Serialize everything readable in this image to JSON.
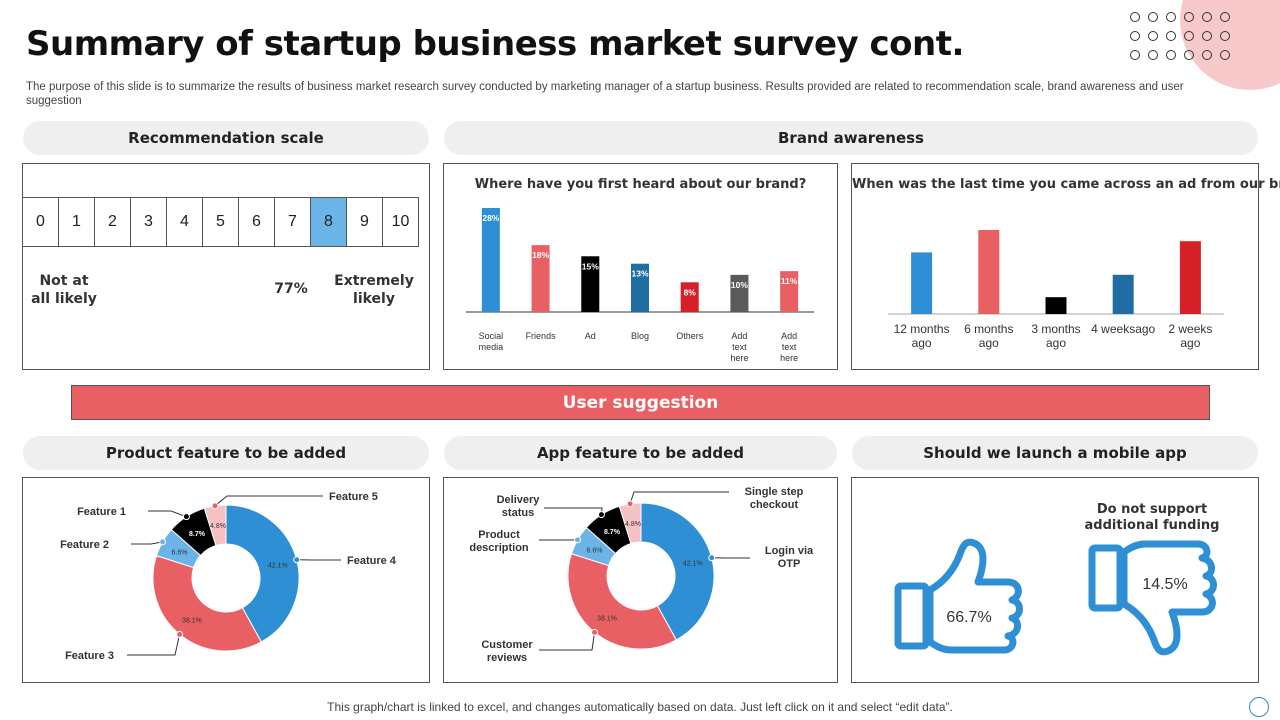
{
  "page": {
    "title": "Summary of startup business market survey cont.",
    "subtitle": "The purpose of this slide is to summarize the results of business market research survey conducted by marketing manager of a startup business. Results provided are related to recommendation scale, brand awareness and user suggestion",
    "footer": "This graph/chart is linked to excel,  and changes automatically based on data. Just left click on it and select “edit data”."
  },
  "sections": {
    "recommendation": "Recommendation scale",
    "brand": "Brand awareness",
    "user": "User suggestion",
    "product": "Product feature to be added",
    "app": "App feature to be added",
    "mobile": "Should we launch a mobile app"
  },
  "scale": {
    "numbers": [
      "0",
      "1",
      "2",
      "3",
      "4",
      "5",
      "6",
      "7",
      "8",
      "9",
      "10"
    ],
    "selected_index": 8,
    "low_label": "Not at all likely",
    "score": "77%",
    "high_label": "Extremely likely"
  },
  "mobile": {
    "support_pct": "66.7%",
    "oppose_pct": "14.5%",
    "oppose_label": "Do not support additional funding"
  },
  "colors": {
    "blue": "#2e8fd4",
    "red": "#e96064",
    "black": "#000000",
    "navy": "#1f6da3",
    "crimson": "#d42026",
    "gray": "#5a5a5a",
    "lightblue": "#6ab4e8",
    "pink": "#f6c1c3"
  },
  "chart_data": [
    {
      "type": "bar",
      "title": "Where have you first  heard about our brand?",
      "categories": [
        "Social media",
        "Friends",
        "Ad",
        "Blog",
        "Others",
        "Add text here",
        "Add text here"
      ],
      "values": [
        28,
        18,
        15,
        13,
        8,
        10,
        11
      ],
      "value_labels": [
        "28%",
        "18%",
        "15%",
        "13%",
        "8%",
        "10%",
        "11%"
      ],
      "bar_colors": [
        "#2e8fd4",
        "#e96064",
        "#000000",
        "#1f6da3",
        "#d42026",
        "#5a5a5a",
        "#e96064"
      ],
      "ylim": [
        0,
        28
      ]
    },
    {
      "type": "bar",
      "title": "When was the last time you came across  an ad from our brand",
      "categories": [
        "12 months ago",
        "6 months ago",
        "3 months ago",
        "4 weeksago",
        "2 weeks ago"
      ],
      "values": [
        22,
        30,
        6,
        14,
        26
      ],
      "bar_colors": [
        "#2e8fd4",
        "#e96064",
        "#000000",
        "#1f6da3",
        "#d42026"
      ],
      "ylim": [
        0,
        30
      ]
    },
    {
      "type": "pie",
      "title": "Product feature to be added",
      "labels": [
        "Feature 4",
        "Feature 3",
        "Feature 2",
        "Feature 1",
        "Feature 5"
      ],
      "values": [
        42.1,
        38.1,
        6.6,
        8.7,
        4.8
      ],
      "value_labels": [
        "42.1%",
        "38.1%",
        "6.6%",
        "8.7%",
        "4.8%"
      ],
      "colors": [
        "#2e8fd4",
        "#e96064",
        "#6ab4e8",
        "#000000",
        "#f6c1c3"
      ]
    },
    {
      "type": "pie",
      "title": "App feature to be added",
      "labels": [
        "Login via OTP",
        "Customer reviews",
        "Product description",
        "Delivery status",
        "Single step checkout"
      ],
      "values": [
        42.1,
        38.1,
        6.6,
        8.7,
        4.8
      ],
      "value_labels": [
        "42.1%",
        "38.1%",
        "6.6%",
        "8.7%",
        "4.8%"
      ],
      "colors": [
        "#2e8fd4",
        "#e96064",
        "#6ab4e8",
        "#000000",
        "#f6c1c3"
      ]
    }
  ]
}
